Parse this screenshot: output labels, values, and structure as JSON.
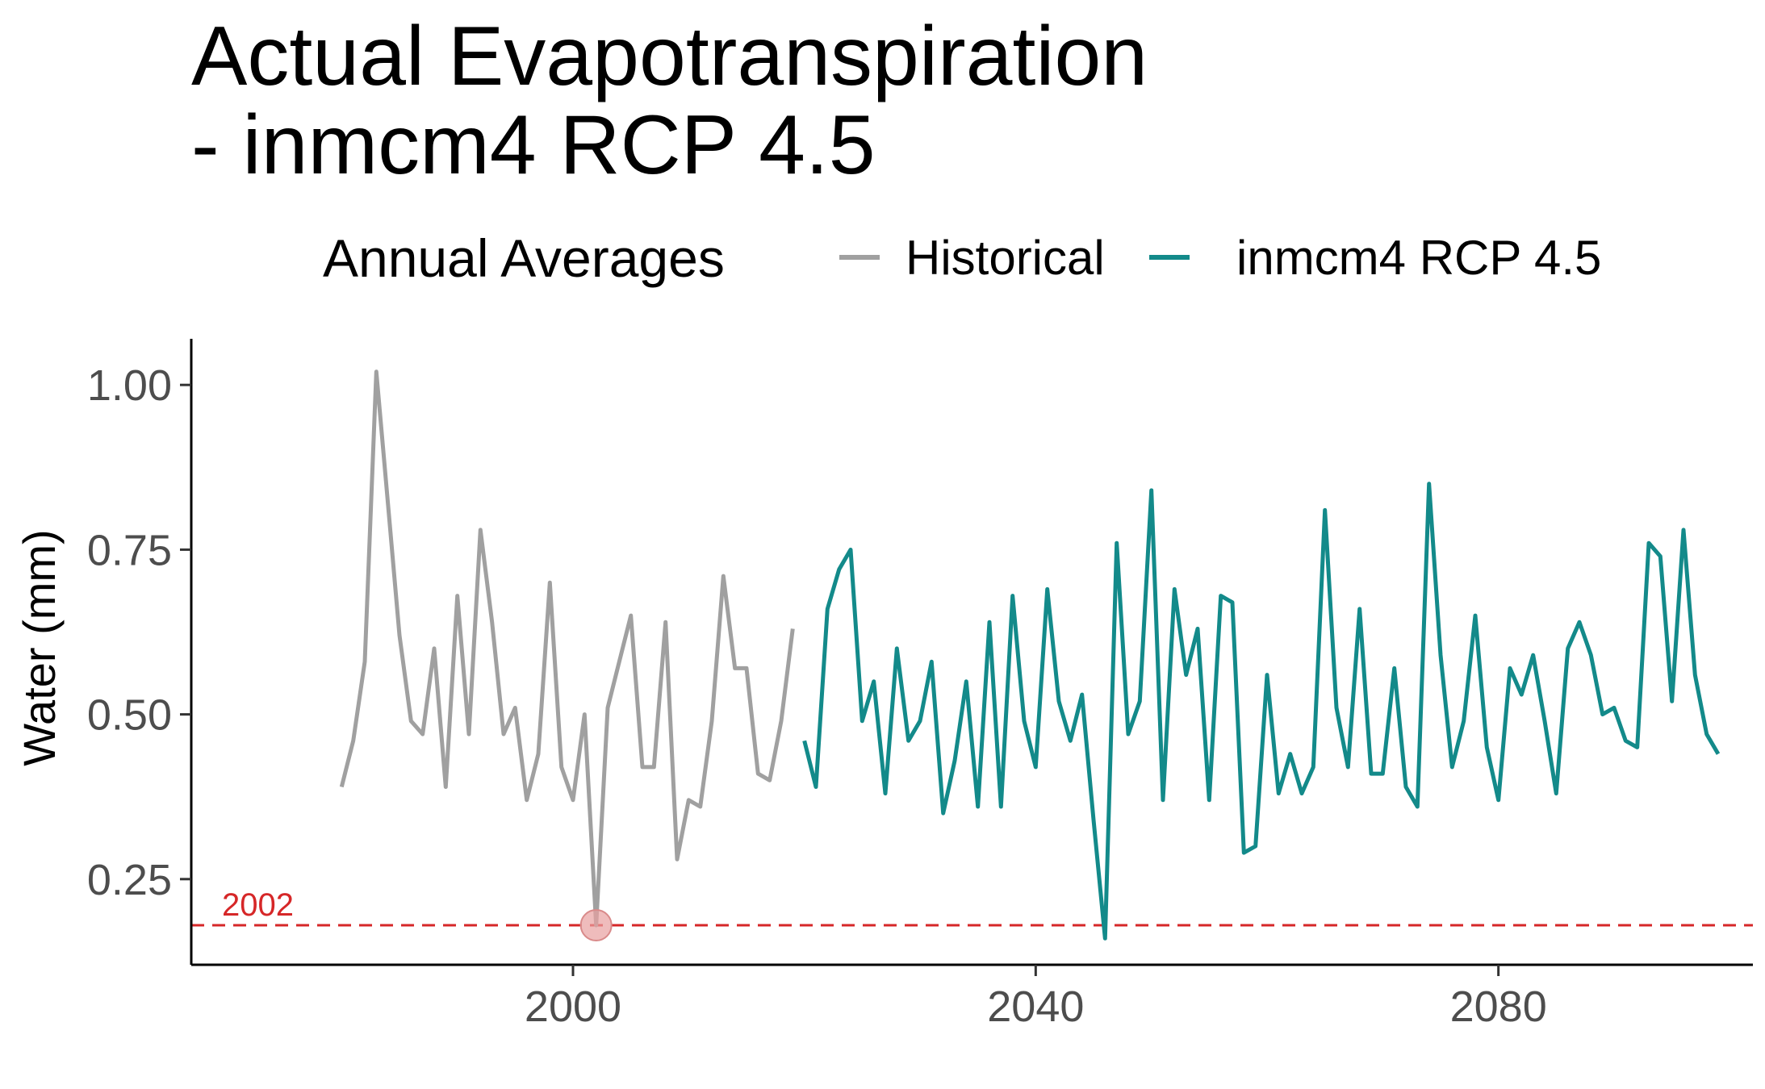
{
  "chart_data": {
    "type": "line",
    "title_lines": [
      "Actual Evapotranspiration",
      "- inmcm4 RCP 4.5"
    ],
    "xlabel": "",
    "ylabel": "Water (mm)",
    "xlim": [
      1967,
      2102
    ],
    "ylim": [
      0.12,
      1.07
    ],
    "x_ticks": [
      2000,
      2040,
      2080
    ],
    "x_tick_labels": [
      "2000",
      "2040",
      "2080"
    ],
    "y_ticks": [
      0.25,
      0.5,
      0.75,
      1.0
    ],
    "y_tick_labels": [
      "0.25",
      "0.50",
      "0.75",
      "1.00"
    ],
    "grid": false,
    "legend": {
      "title": "Annual Averages",
      "placement": "top",
      "entries": [
        {
          "label": "Historical",
          "color": "#a0a0a0"
        },
        {
          "label": "inmcm4 RCP 4.5",
          "color": "#138a8a"
        }
      ]
    },
    "series": [
      {
        "name": "Historical",
        "color": "#a0a0a0",
        "x": [
          1980,
          1981,
          1982,
          1983,
          1984,
          1985,
          1986,
          1987,
          1988,
          1989,
          1990,
          1991,
          1992,
          1993,
          1994,
          1995,
          1996,
          1997,
          1998,
          1999,
          2000,
          2001,
          2002,
          2003,
          2004,
          2005,
          2006,
          2007,
          2008,
          2009,
          2010,
          2011,
          2012,
          2013,
          2014,
          2015,
          2016,
          2017,
          2018,
          2019
        ],
        "values": [
          0.39,
          0.46,
          0.58,
          1.02,
          0.82,
          0.62,
          0.49,
          0.47,
          0.6,
          0.39,
          0.68,
          0.47,
          0.78,
          0.64,
          0.47,
          0.51,
          0.37,
          0.44,
          0.7,
          0.42,
          0.37,
          0.5,
          0.18,
          0.51,
          0.58,
          0.65,
          0.42,
          0.42,
          0.64,
          0.28,
          0.37,
          0.36,
          0.49,
          0.71,
          0.57,
          0.57,
          0.41,
          0.4,
          0.49,
          0.63
        ]
      },
      {
        "name": "inmcm4 RCP 4.5",
        "color": "#138a8a",
        "x": [
          2020,
          2021,
          2022,
          2023,
          2024,
          2025,
          2026,
          2027,
          2028,
          2029,
          2030,
          2031,
          2032,
          2033,
          2034,
          2035,
          2036,
          2037,
          2038,
          2039,
          2040,
          2041,
          2042,
          2043,
          2044,
          2045,
          2046,
          2047,
          2048,
          2049,
          2050,
          2051,
          2052,
          2053,
          2054,
          2055,
          2056,
          2057,
          2058,
          2059,
          2060,
          2061,
          2062,
          2063,
          2064,
          2065,
          2066,
          2067,
          2068,
          2069,
          2070,
          2071,
          2072,
          2073,
          2074,
          2075,
          2076,
          2077,
          2078,
          2079,
          2080,
          2081,
          2082,
          2083,
          2084,
          2085,
          2086,
          2087,
          2088,
          2089,
          2090,
          2091,
          2092,
          2093,
          2094,
          2095,
          2096,
          2097,
          2098,
          2099
        ],
        "values": [
          0.46,
          0.39,
          0.66,
          0.72,
          0.75,
          0.49,
          0.55,
          0.38,
          0.6,
          0.46,
          0.49,
          0.58,
          0.35,
          0.43,
          0.55,
          0.36,
          0.64,
          0.36,
          0.68,
          0.49,
          0.42,
          0.69,
          0.52,
          0.46,
          0.53,
          0.34,
          0.16,
          0.76,
          0.47,
          0.52,
          0.84,
          0.37,
          0.69,
          0.56,
          0.63,
          0.37,
          0.68,
          0.67,
          0.29,
          0.3,
          0.56,
          0.38,
          0.44,
          0.38,
          0.42,
          0.81,
          0.51,
          0.42,
          0.66,
          0.41,
          0.41,
          0.57,
          0.39,
          0.36,
          0.85,
          0.59,
          0.42,
          0.49,
          0.65,
          0.45,
          0.37,
          0.57,
          0.53,
          0.59,
          0.49,
          0.38,
          0.6,
          0.64,
          0.59,
          0.5,
          0.51,
          0.46,
          0.45,
          0.76,
          0.74,
          0.52,
          0.78,
          0.56,
          0.47,
          0.44
        ]
      }
    ],
    "reference_line": {
      "y": 0.18,
      "label": "2002",
      "color": "#d62728",
      "style": "dashed"
    },
    "highlight_point": {
      "x": 2002,
      "y": 0.18,
      "color": "#e8a0a0"
    }
  }
}
